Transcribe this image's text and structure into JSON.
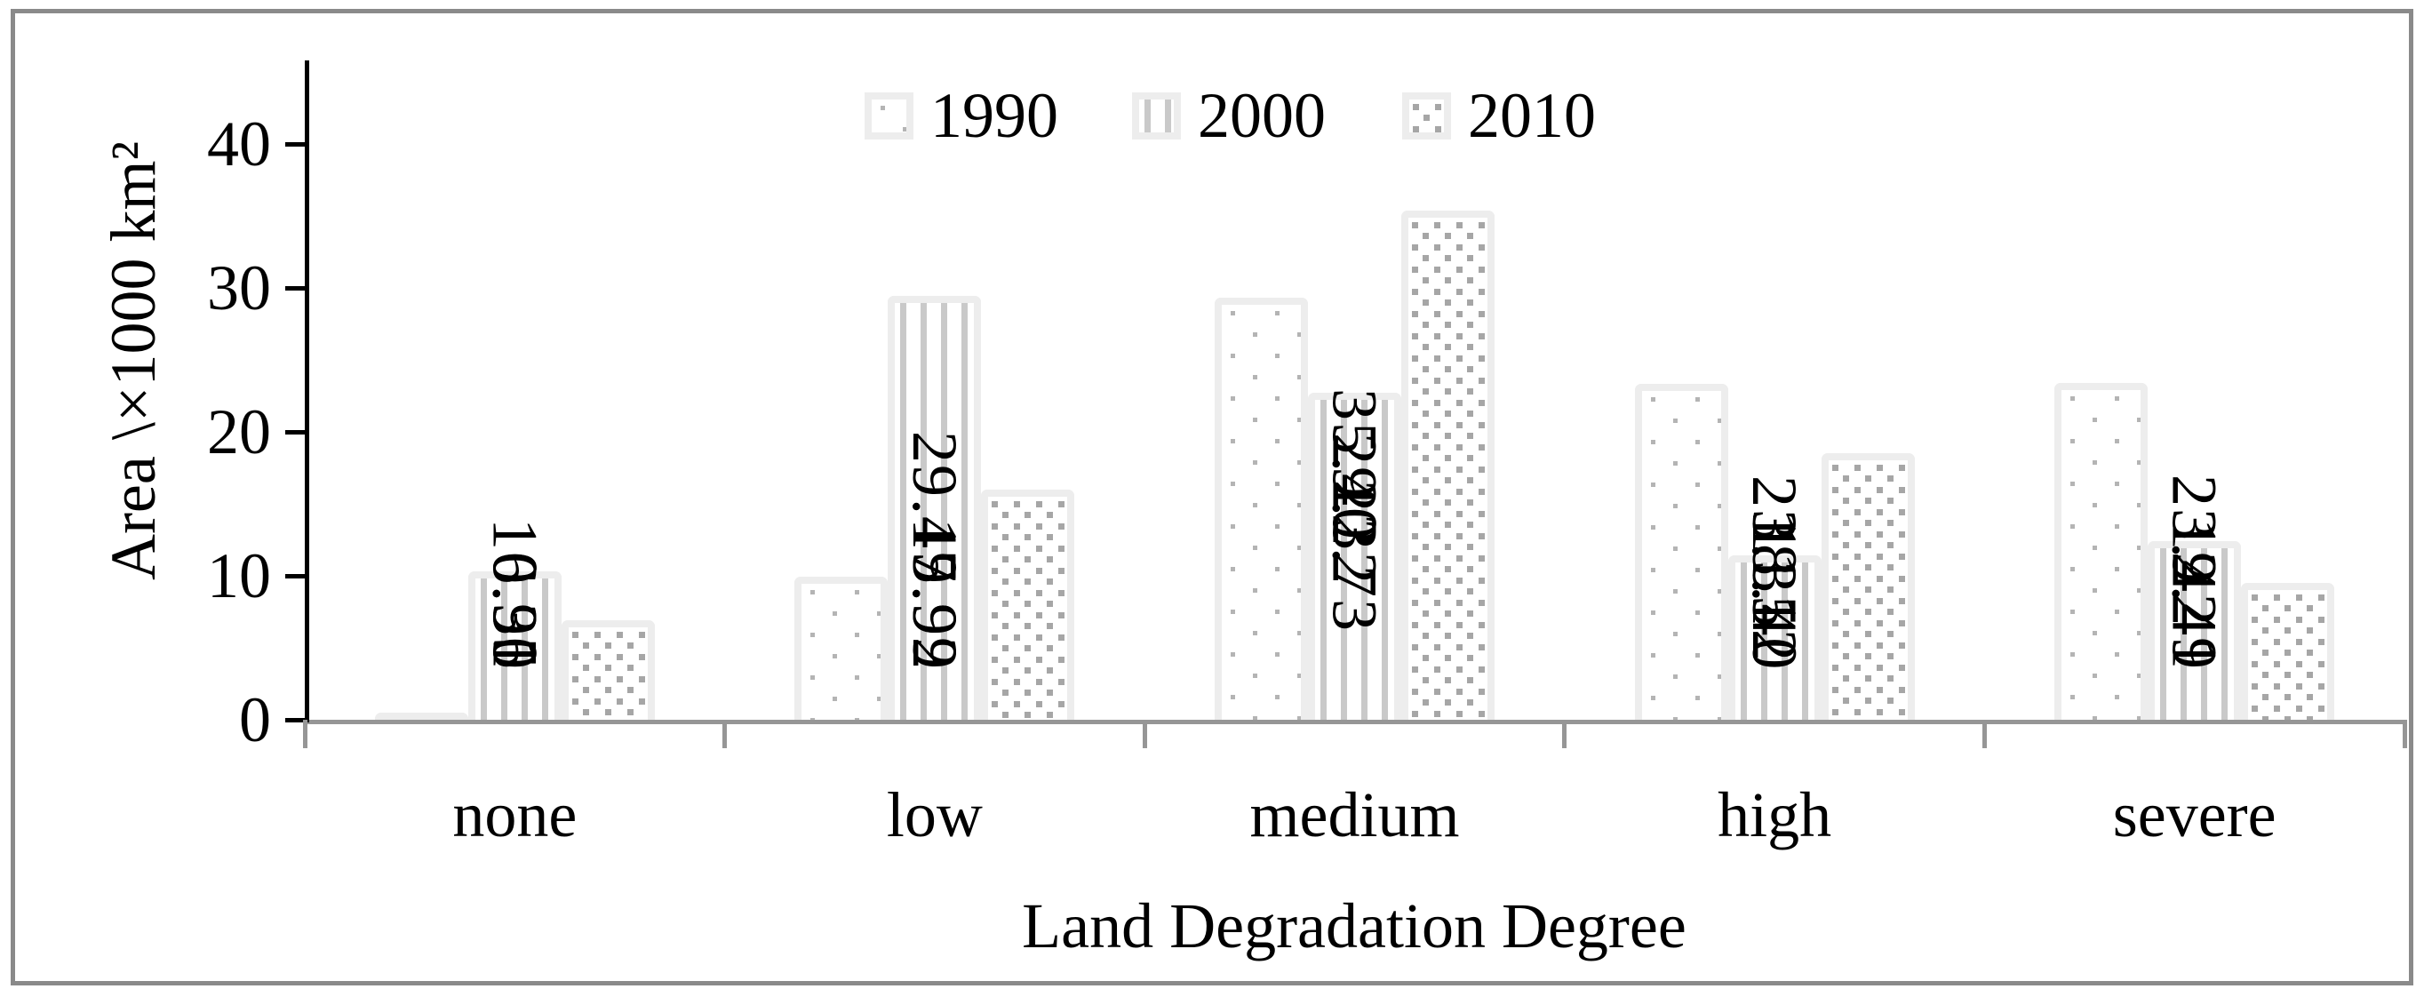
{
  "chart_data": {
    "type": "bar",
    "title": "",
    "categories": [
      "none",
      "low",
      "medium",
      "high",
      "severe"
    ],
    "series": [
      {
        "name": "1990",
        "values": [
          0.35,
          9.92,
          29.32,
          23.31,
          23.42
        ],
        "labels": [
          "0.35",
          "9.92",
          "29.32",
          "23.31",
          "23.42"
        ],
        "pattern": "sparse-square-dots",
        "pattern_color": "#b4b4b4"
      },
      {
        "name": "2000",
        "values": [
          10.3,
          29.47,
          22.73,
          11.4,
          12.41
        ],
        "labels": [
          "10.30",
          "29.47",
          "22.73",
          "11.40",
          "12.41"
        ],
        "pattern": "vertical-stripes",
        "pattern_color": "#c9c9c9"
      },
      {
        "name": "2010",
        "values": [
          6.91,
          15.99,
          35.4,
          18.52,
          9.49
        ],
        "labels": [
          "6.91",
          "15.99",
          "35.40",
          "18.52",
          "9.49"
        ],
        "pattern": "dense-square-dots",
        "pattern_color": "#a6a6a6"
      }
    ],
    "ylabel": "Area \\×1000 km²",
    "xlabel": "Land Degradation Degree",
    "yticks": [
      "0",
      "10",
      "20",
      "30",
      "40"
    ],
    "ylim": [
      0,
      45
    ],
    "grid": false,
    "legend_position": "top",
    "value_label_rotation": "vertical",
    "bar_fill": "#ffffff",
    "bar_border_color": "#ededed",
    "axis_color": "#000000",
    "baseline_color": "#969696",
    "figure_border_color": "#8a8a8a"
  }
}
